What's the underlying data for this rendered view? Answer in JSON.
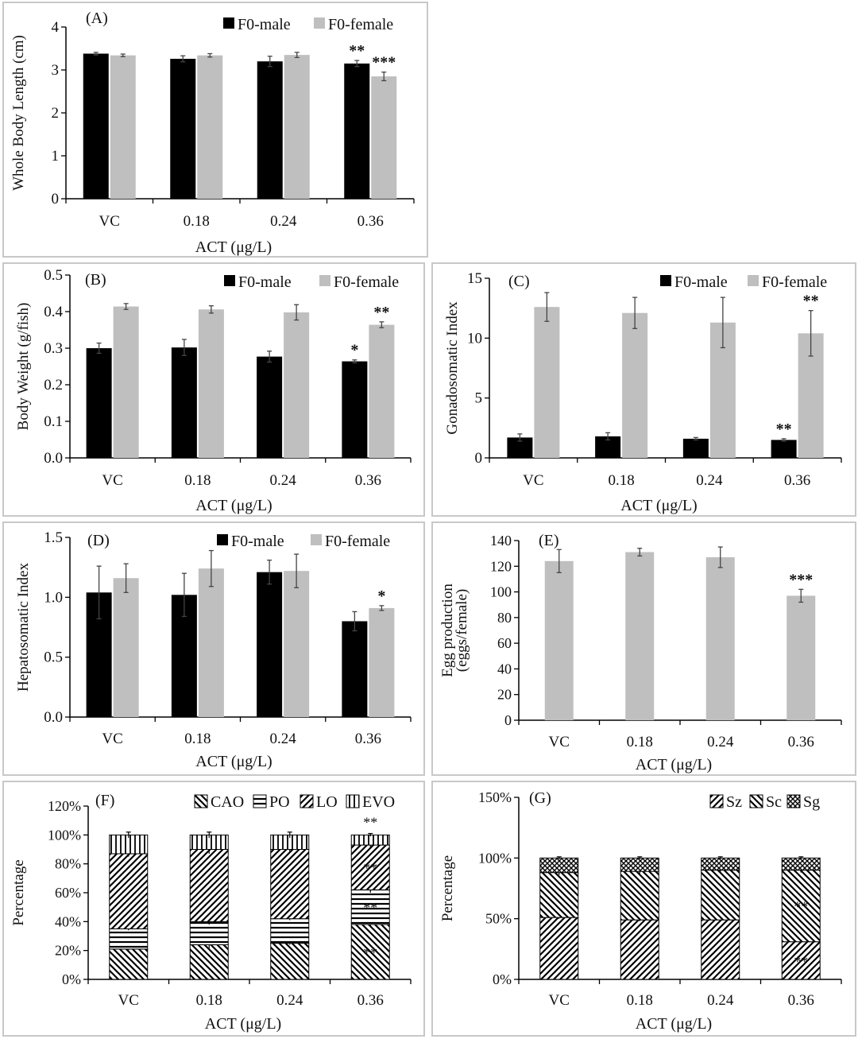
{
  "chart_data": [
    {
      "id": "A",
      "type": "bar",
      "title": "(A)",
      "ylabel": "Whole Body Length (cm)",
      "xlabel": "ACT  (μg/L)",
      "categories": [
        "VC",
        "0.18",
        "0.24",
        "0.36"
      ],
      "ylim": [
        0,
        4
      ],
      "yticks": [
        "0",
        "1",
        "2",
        "3",
        "4"
      ],
      "series": [
        {
          "name": "F0-male",
          "color": "#000000",
          "values": [
            3.38,
            3.26,
            3.2,
            3.15
          ],
          "errors": [
            0.03,
            0.07,
            0.12,
            0.07
          ],
          "sig": [
            "",
            "",
            "",
            "**"
          ]
        },
        {
          "name": "F0-female",
          "color": "#bfbfbf",
          "values": [
            3.34,
            3.34,
            3.35,
            2.85
          ],
          "errors": [
            0.03,
            0.04,
            0.06,
            0.1
          ],
          "sig": [
            "",
            "",
            "",
            "***"
          ]
        }
      ]
    },
    {
      "id": "B",
      "type": "bar",
      "title": "(B)",
      "ylabel": "Body Weight (g/fish)",
      "xlabel": "ACT  (μg/L)",
      "categories": [
        "VC",
        "0.18",
        "0.24",
        "0.36"
      ],
      "ylim": [
        0,
        0.5
      ],
      "yticks": [
        "0.0",
        "0.1",
        "0.2",
        "0.3",
        "0.4",
        "0.5"
      ],
      "series": [
        {
          "name": "F0-male",
          "color": "#000000",
          "values": [
            0.3,
            0.302,
            0.277,
            0.264
          ],
          "errors": [
            0.014,
            0.022,
            0.015,
            0.004
          ],
          "sig": [
            "",
            "",
            "",
            "*"
          ]
        },
        {
          "name": "F0-female",
          "color": "#bfbfbf",
          "values": [
            0.414,
            0.406,
            0.398,
            0.364
          ],
          "errors": [
            0.008,
            0.01,
            0.021,
            0.008
          ],
          "sig": [
            "",
            "",
            "",
            "**"
          ]
        }
      ]
    },
    {
      "id": "C",
      "type": "bar",
      "title": "(C)",
      "ylabel": "Gonadosomatic Index",
      "xlabel": "ACT  (μg/L)",
      "categories": [
        "VC",
        "0.18",
        "0.24",
        "0.36"
      ],
      "ylim": [
        0,
        15
      ],
      "yticks": [
        "0",
        "5",
        "10",
        "15"
      ],
      "series": [
        {
          "name": "F0-male",
          "color": "#000000",
          "values": [
            1.7,
            1.8,
            1.6,
            1.5
          ],
          "errors": [
            0.3,
            0.3,
            0.1,
            0.1
          ],
          "sig": [
            "",
            "",
            "",
            "**"
          ]
        },
        {
          "name": "F0-female",
          "color": "#bfbfbf",
          "values": [
            12.6,
            12.1,
            11.3,
            10.4
          ],
          "errors": [
            1.2,
            1.3,
            2.1,
            1.9
          ],
          "sig": [
            "",
            "",
            "",
            "**"
          ]
        }
      ]
    },
    {
      "id": "D",
      "type": "bar",
      "title": "(D)",
      "ylabel": "Hepatosomatic Index",
      "xlabel": "ACT  (μg/L)",
      "categories": [
        "VC",
        "0.18",
        "0.24",
        "0.36"
      ],
      "ylim": [
        0,
        1.5
      ],
      "yticks": [
        "0.0",
        "0.5",
        "1.0",
        "1.5"
      ],
      "series": [
        {
          "name": "F0-male",
          "color": "#000000",
          "values": [
            1.04,
            1.02,
            1.21,
            0.8
          ],
          "errors": [
            0.22,
            0.18,
            0.1,
            0.08
          ],
          "sig": [
            "",
            "",
            "",
            ""
          ]
        },
        {
          "name": "F0-female",
          "color": "#bfbfbf",
          "values": [
            1.16,
            1.24,
            1.22,
            0.91
          ],
          "errors": [
            0.12,
            0.15,
            0.14,
            0.02
          ],
          "sig": [
            "",
            "",
            "",
            "*"
          ]
        }
      ]
    },
    {
      "id": "E",
      "type": "bar",
      "title": "(E)",
      "ylabel": "Egg production",
      "ylabel2": "(eggs/female)",
      "xlabel": "ACT  (μg/L)",
      "categories": [
        "VC",
        "0.18",
        "0.24",
        "0.36"
      ],
      "ylim": [
        0,
        140
      ],
      "yticks": [
        "0",
        "20",
        "40",
        "60",
        "80",
        "100",
        "120",
        "140"
      ],
      "series": [
        {
          "name": "Egg production",
          "color": "#bfbfbf",
          "values": [
            124,
            131,
            127,
            97
          ],
          "errors": [
            9,
            3,
            8,
            5
          ],
          "sig": [
            "",
            "",
            "",
            "***"
          ]
        }
      ]
    },
    {
      "id": "F",
      "type": "stacked_bar",
      "title": "(F)",
      "ylabel": "Percentage",
      "xlabel": "ACT  (μg/L)",
      "categories": [
        "VC",
        "0.18",
        "0.24",
        "0.36"
      ],
      "ylim": [
        0,
        120
      ],
      "yticks": [
        "0%",
        "20%",
        "40%",
        "60%",
        "80%",
        "100%",
        "120%"
      ],
      "series": [
        {
          "name": "CAO",
          "pattern": "backslash",
          "values": [
            21,
            24,
            25,
            38
          ],
          "errors": [
            1,
            3,
            1,
            1
          ],
          "sig": [
            "",
            "",
            "",
            "**"
          ]
        },
        {
          "name": "PO",
          "pattern": "hlines",
          "values": [
            14,
            16,
            17,
            24
          ],
          "errors": [
            1,
            2,
            1,
            2
          ],
          "sig": [
            "",
            "",
            "",
            "**"
          ]
        },
        {
          "name": "LO",
          "pattern": "slash",
          "values": [
            52,
            50,
            48,
            31
          ],
          "errors": [
            2,
            3,
            2,
            2
          ],
          "sig": [
            "",
            "",
            "",
            "**"
          ]
        },
        {
          "name": "EVO",
          "pattern": "vlines",
          "values": [
            13,
            10,
            10,
            7
          ],
          "errors": [
            2,
            2,
            2,
            1
          ],
          "sig": [
            "",
            "",
            "",
            "**"
          ]
        }
      ]
    },
    {
      "id": "G",
      "type": "stacked_bar",
      "title": "(G)",
      "ylabel": "Percentage",
      "xlabel": "ACT  (μg/L)",
      "categories": [
        "VC",
        "0.18",
        "0.24",
        "0.36"
      ],
      "ylim": [
        0,
        150
      ],
      "yticks": [
        "0%",
        "50%",
        "100%",
        "150%"
      ],
      "series": [
        {
          "name": "Sz",
          "pattern": "slash",
          "values": [
            51,
            49,
            49,
            31
          ],
          "errors": [
            1,
            1,
            1,
            1
          ],
          "sig": [
            "",
            "",
            "",
            "**"
          ]
        },
        {
          "name": "Sc",
          "pattern": "backslash",
          "values": [
            37,
            40,
            41,
            59
          ],
          "errors": [
            2,
            2,
            2,
            2
          ],
          "sig": [
            "",
            "",
            "",
            "**"
          ]
        },
        {
          "name": "Sg",
          "pattern": "cross",
          "values": [
            12,
            11,
            10,
            10
          ],
          "errors": [
            1,
            1,
            1,
            1
          ],
          "sig": [
            "",
            "",
            "",
            ""
          ]
        }
      ]
    }
  ]
}
